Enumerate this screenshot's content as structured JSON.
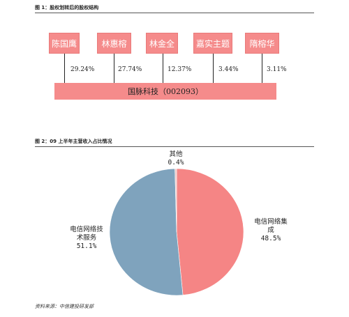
{
  "figure1": {
    "header": "图 1：股权划转后的股权结构",
    "shareholders": [
      {
        "name": "陈国鹰",
        "pct": "29.24%"
      },
      {
        "name": "林惠榕",
        "pct": "27.74%"
      },
      {
        "name": "林金全",
        "pct": "12.37%"
      },
      {
        "name": "嘉实主题",
        "pct": "3.44%"
      },
      {
        "name": "隋榕华",
        "pct": "3.11%"
      }
    ],
    "company": "国脉科技（002093）",
    "colors": {
      "box": "#f58b8b"
    }
  },
  "figure2": {
    "header": "图 2：09 上半年主营收入占比情况"
  },
  "chart_data": {
    "type": "pie",
    "title": "",
    "slices": [
      {
        "label": "电信网络集成",
        "value": 48.5,
        "display": "48.5%",
        "color": "#f58585"
      },
      {
        "label": "电信网络技术服务",
        "value": 51.1,
        "display": "51.1%",
        "color": "#7fa3bd"
      },
      {
        "label": "其他",
        "value": 0.4,
        "display": "0.4%",
        "color": "#f0c8c8"
      }
    ],
    "labels": {
      "integration": [
        "电信网络集",
        "成",
        "48.5%"
      ],
      "service": [
        "电信网络技",
        "术服务",
        "51.1%"
      ],
      "other": [
        "其他",
        "0.4%"
      ]
    }
  },
  "source": "资料来源：中信建投研发部"
}
